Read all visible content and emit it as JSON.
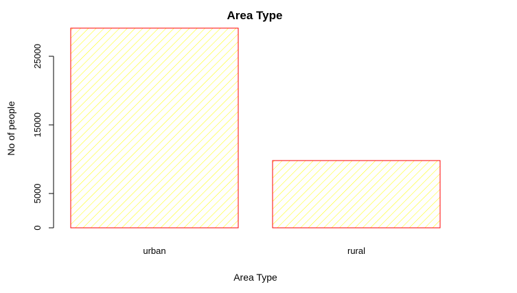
{
  "chart_data": {
    "type": "bar",
    "title": "Area Type",
    "xlabel": "Area Type",
    "ylabel": "No of people",
    "categories": [
      "urban",
      "rural"
    ],
    "values": [
      29100,
      9800
    ],
    "ylim": [
      0,
      29100
    ],
    "yticks": [
      0,
      5000,
      15000,
      25000
    ],
    "grid": false,
    "legend": "none",
    "colors": {
      "bar_border": "#ff0000",
      "hatch": "#ffff00",
      "axis": "#000000",
      "background": "#ffffff"
    }
  }
}
